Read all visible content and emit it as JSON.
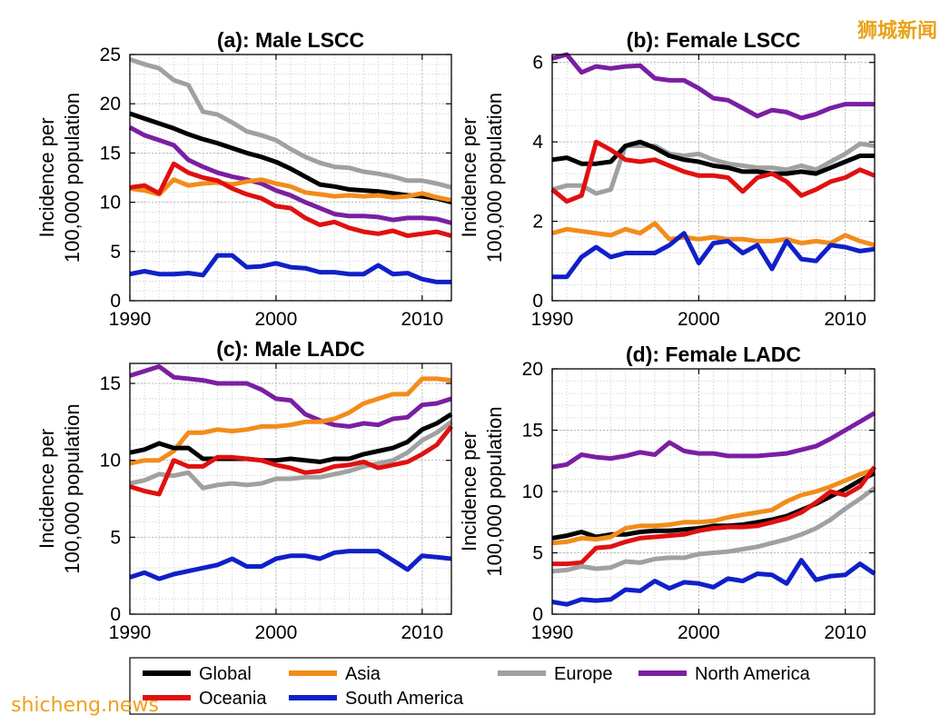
{
  "watermark_top": "狮城新闻",
  "watermark_bottom": "shicheng.news",
  "ylabel_line1": "Incidence per",
  "ylabel_line2": "100,000 population",
  "legend": [
    {
      "name": "Global",
      "color": "#000000"
    },
    {
      "name": "Asia",
      "color": "#f28c1a"
    },
    {
      "name": "Europe",
      "color": "#a0a0a0"
    },
    {
      "name": "North America",
      "color": "#7a1fa2"
    },
    {
      "name": "Oceania",
      "color": "#e01010"
    },
    {
      "name": "South America",
      "color": "#1020c8"
    }
  ],
  "chart_data": [
    {
      "type": "line",
      "title": "(a): Male LSCC",
      "ylabel": "Incidence per 100,000 population",
      "xlim": [
        1990,
        2012
      ],
      "ylim": [
        0,
        25
      ],
      "xticks": [
        1990,
        2000,
        2010
      ],
      "yticks": [
        0,
        5,
        10,
        15,
        20,
        25
      ],
      "grid": true,
      "x": [
        1990,
        1991,
        1992,
        1993,
        1994,
        1995,
        1996,
        1997,
        1998,
        1999,
        2000,
        2001,
        2002,
        2003,
        2004,
        2005,
        2006,
        2007,
        2008,
        2009,
        2010,
        2011,
        2012
      ],
      "series": [
        {
          "name": "Europe",
          "values": [
            24.5,
            24,
            23.6,
            22.4,
            21.9,
            19.2,
            18.9,
            18.1,
            17.2,
            16.8,
            16.3,
            15.4,
            14.6,
            14,
            13.6,
            13.5,
            13.1,
            12.9,
            12.6,
            12.2,
            12.2,
            11.9,
            11.5
          ]
        },
        {
          "name": "Global",
          "values": [
            19,
            18.5,
            18,
            17.5,
            16.9,
            16.4,
            16,
            15.5,
            15,
            14.6,
            14.1,
            13.4,
            12.6,
            11.8,
            11.6,
            11.3,
            11.2,
            11.1,
            10.9,
            10.7,
            10.6,
            10.4,
            10
          ]
        },
        {
          "name": "North America",
          "values": [
            17.6,
            16.8,
            16.3,
            15.8,
            14.3,
            13.6,
            13,
            12.6,
            12.3,
            11.9,
            11.2,
            10.7,
            10,
            9.4,
            8.8,
            8.6,
            8.6,
            8.5,
            8.2,
            8.4,
            8.4,
            8.3,
            7.9
          ]
        },
        {
          "name": "Asia",
          "values": [
            11.4,
            11.2,
            10.8,
            12.3,
            11.7,
            11.9,
            12,
            11.8,
            12.1,
            12.3,
            11.9,
            11.6,
            11,
            10.8,
            10.6,
            10.7,
            10.6,
            10.7,
            10.5,
            10.6,
            10.9,
            10.5,
            10.2
          ]
        },
        {
          "name": "Oceania",
          "values": [
            11.5,
            11.7,
            10.9,
            13.9,
            13,
            12.5,
            12.2,
            11.4,
            10.8,
            10.4,
            9.6,
            9.4,
            8.4,
            7.7,
            8,
            7.4,
            7,
            6.8,
            7.1,
            6.6,
            6.8,
            7,
            6.6
          ]
        },
        {
          "name": "South America",
          "values": [
            2.7,
            3,
            2.7,
            2.7,
            2.8,
            2.6,
            4.6,
            4.6,
            3.4,
            3.5,
            3.8,
            3.4,
            3.3,
            2.9,
            2.9,
            2.7,
            2.7,
            3.6,
            2.7,
            2.8,
            2.2,
            1.9,
            1.9
          ]
        }
      ]
    },
    {
      "type": "line",
      "title": "(b): Female LSCC",
      "ylabel": "Incidence per 100,000 population",
      "xlim": [
        1990,
        2012
      ],
      "ylim": [
        0,
        6.2
      ],
      "xticks": [
        1990,
        2000,
        2010
      ],
      "yticks": [
        0,
        2,
        4,
        6
      ],
      "grid": true,
      "x": [
        1990,
        1991,
        1992,
        1993,
        1994,
        1995,
        1996,
        1997,
        1998,
        1999,
        2000,
        2001,
        2002,
        2003,
        2004,
        2005,
        2006,
        2007,
        2008,
        2009,
        2010,
        2011,
        2012
      ],
      "series": [
        {
          "name": "North America",
          "values": [
            6.1,
            6.2,
            5.75,
            5.9,
            5.85,
            5.9,
            5.92,
            5.6,
            5.55,
            5.55,
            5.35,
            5.1,
            5.05,
            4.85,
            4.65,
            4.8,
            4.75,
            4.6,
            4.7,
            4.85,
            4.95,
            4.95,
            4.95
          ]
        },
        {
          "name": "Europe",
          "values": [
            2.8,
            2.9,
            2.9,
            2.7,
            2.8,
            3.9,
            3.9,
            3.9,
            3.7,
            3.65,
            3.7,
            3.55,
            3.45,
            3.4,
            3.35,
            3.35,
            3.3,
            3.4,
            3.3,
            3.5,
            3.7,
            3.95,
            3.9
          ]
        },
        {
          "name": "Global",
          "values": [
            3.55,
            3.6,
            3.45,
            3.45,
            3.5,
            3.9,
            4,
            3.85,
            3.65,
            3.55,
            3.5,
            3.4,
            3.35,
            3.25,
            3.25,
            3.2,
            3.2,
            3.25,
            3.2,
            3.35,
            3.5,
            3.65,
            3.65
          ]
        },
        {
          "name": "Oceania",
          "values": [
            2.8,
            2.5,
            2.65,
            4,
            3.8,
            3.55,
            3.5,
            3.55,
            3.4,
            3.25,
            3.15,
            3.15,
            3.1,
            2.75,
            3.1,
            3.2,
            3,
            2.65,
            2.8,
            3,
            3.1,
            3.3,
            3.15
          ]
        },
        {
          "name": "Asia",
          "values": [
            1.7,
            1.8,
            1.75,
            1.7,
            1.65,
            1.8,
            1.7,
            1.95,
            1.55,
            1.6,
            1.55,
            1.6,
            1.55,
            1.55,
            1.5,
            1.5,
            1.55,
            1.45,
            1.5,
            1.45,
            1.65,
            1.5,
            1.4
          ]
        },
        {
          "name": "South America",
          "values": [
            0.6,
            0.6,
            1.1,
            1.35,
            1.1,
            1.2,
            1.2,
            1.2,
            1.4,
            1.7,
            0.95,
            1.45,
            1.5,
            1.2,
            1.4,
            0.8,
            1.5,
            1.05,
            1,
            1.4,
            1.35,
            1.25,
            1.3
          ]
        }
      ]
    },
    {
      "type": "line",
      "title": "(c): Male LADC",
      "ylabel": "Incidence per 100,000 population",
      "xlim": [
        1990,
        2012
      ],
      "ylim": [
        0,
        16.3
      ],
      "xticks": [
        1990,
        2000,
        2010
      ],
      "yticks": [
        0,
        5,
        10,
        15
      ],
      "grid": true,
      "x": [
        1990,
        1991,
        1992,
        1993,
        1994,
        1995,
        1996,
        1997,
        1998,
        1999,
        2000,
        2001,
        2002,
        2003,
        2004,
        2005,
        2006,
        2007,
        2008,
        2009,
        2010,
        2011,
        2012
      ],
      "series": [
        {
          "name": "North America",
          "values": [
            15.5,
            15.8,
            16.1,
            15.4,
            15.3,
            15.2,
            15,
            15,
            15,
            14.6,
            14,
            13.9,
            13,
            12.6,
            12.3,
            12.2,
            12.4,
            12.3,
            12.7,
            12.8,
            13.6,
            13.7,
            14
          ]
        },
        {
          "name": "Asia",
          "values": [
            9.8,
            10,
            10,
            10.6,
            11.8,
            11.8,
            12,
            11.9,
            12,
            12.2,
            12.2,
            12.3,
            12.5,
            12.5,
            12.7,
            13.1,
            13.7,
            14,
            14.3,
            14.3,
            15.3,
            15.3,
            15.2
          ]
        },
        {
          "name": "Global",
          "values": [
            10.5,
            10.7,
            11.1,
            10.8,
            10.8,
            10.1,
            10.1,
            10.1,
            10.1,
            10,
            10,
            10.1,
            10,
            9.9,
            10.1,
            10.1,
            10.4,
            10.6,
            10.8,
            11.2,
            12,
            12.4,
            13
          ]
        },
        {
          "name": "Europe",
          "values": [
            8.5,
            8.7,
            9.1,
            9,
            9.2,
            8.2,
            8.4,
            8.5,
            8.4,
            8.5,
            8.8,
            8.8,
            8.9,
            8.9,
            9.1,
            9.3,
            9.6,
            9.8,
            10,
            10.5,
            11.3,
            11.8,
            12.5
          ]
        },
        {
          "name": "Oceania",
          "values": [
            8.3,
            8,
            7.8,
            10,
            9.6,
            9.6,
            10.2,
            10.2,
            10.1,
            10,
            9.7,
            9.5,
            9.2,
            9.3,
            9.6,
            9.7,
            9.9,
            9.5,
            9.7,
            9.9,
            10.4,
            11,
            12.2
          ]
        },
        {
          "name": "South America",
          "values": [
            2.4,
            2.7,
            2.3,
            2.6,
            2.8,
            3,
            3.2,
            3.6,
            3.1,
            3.1,
            3.6,
            3.8,
            3.8,
            3.6,
            4,
            4.1,
            4.1,
            4.1,
            3.5,
            2.9,
            3.8,
            3.7,
            3.6
          ]
        }
      ]
    },
    {
      "type": "line",
      "title": "(d): Female LADC",
      "ylabel": "Incidence per 100,000 population",
      "xlim": [
        1990,
        2012
      ],
      "ylim": [
        0,
        20
      ],
      "xticks": [
        1990,
        2000,
        2010
      ],
      "yticks": [
        0,
        5,
        10,
        15,
        20
      ],
      "grid": true,
      "x": [
        1990,
        1991,
        1992,
        1993,
        1994,
        1995,
        1996,
        1997,
        1998,
        1999,
        2000,
        2001,
        2002,
        2003,
        2004,
        2005,
        2006,
        2007,
        2008,
        2009,
        2010,
        2011,
        2012
      ],
      "series": [
        {
          "name": "North America",
          "values": [
            12,
            12.2,
            13,
            12.8,
            12.7,
            12.9,
            13.2,
            13,
            14,
            13.3,
            13.1,
            13.1,
            12.9,
            12.9,
            12.9,
            13,
            13.1,
            13.4,
            13.7,
            14.3,
            15,
            15.7,
            16.4
          ]
        },
        {
          "name": "Global",
          "values": [
            6.2,
            6.4,
            6.7,
            6.3,
            6.5,
            6.5,
            6.7,
            6.8,
            6.8,
            6.9,
            7,
            7.2,
            7.2,
            7.3,
            7.5,
            7.7,
            8,
            8.5,
            9,
            9.6,
            10.2,
            10.9,
            11.5
          ]
        },
        {
          "name": "Asia",
          "values": [
            5.8,
            5.9,
            6.2,
            6.1,
            6.3,
            7,
            7.2,
            7.2,
            7.3,
            7.5,
            7.5,
            7.6,
            7.9,
            8.1,
            8.3,
            8.5,
            9.2,
            9.7,
            10,
            10.4,
            10.9,
            11.4,
            11.8
          ]
        },
        {
          "name": "Oceania",
          "values": [
            4.1,
            4.1,
            4.2,
            5.4,
            5.5,
            5.9,
            6.2,
            6.3,
            6.4,
            6.5,
            6.8,
            7,
            7.1,
            7.1,
            7.2,
            7.5,
            7.8,
            8.3,
            9.1,
            10,
            9.7,
            10.4,
            12
          ]
        },
        {
          "name": "Europe",
          "values": [
            3.5,
            3.6,
            3.9,
            3.7,
            3.8,
            4.3,
            4.2,
            4.5,
            4.6,
            4.6,
            4.9,
            5,
            5.1,
            5.3,
            5.5,
            5.8,
            6.1,
            6.5,
            7,
            7.7,
            8.6,
            9.4,
            10.3
          ]
        },
        {
          "name": "South America",
          "values": [
            1,
            0.8,
            1.2,
            1.1,
            1.2,
            2,
            1.9,
            2.7,
            2.1,
            2.6,
            2.5,
            2.2,
            2.9,
            2.7,
            3.3,
            3.2,
            2.5,
            4.4,
            2.8,
            3.1,
            3.2,
            4.1,
            3.3
          ]
        }
      ]
    }
  ]
}
